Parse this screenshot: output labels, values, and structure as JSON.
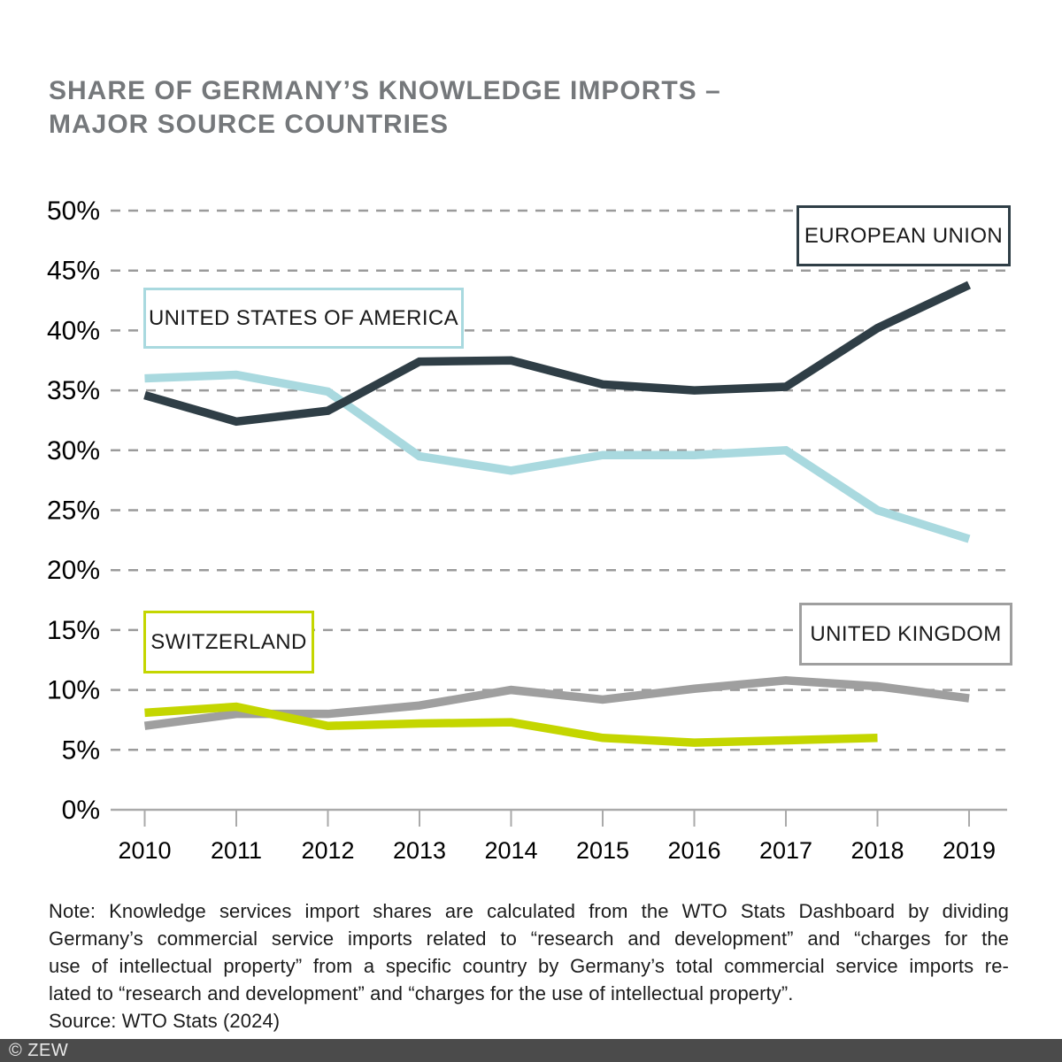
{
  "title": {
    "line1": "SHARE OF GERMANY’S KNOWLEDGE IMPORTS –",
    "line2": "MAJOR SOURCE COUNTRIES"
  },
  "chart_data": {
    "type": "line",
    "x": [
      "2010",
      "2011",
      "2012",
      "2013",
      "2014",
      "2015",
      "2016",
      "2017",
      "2018",
      "2019"
    ],
    "ylim": [
      0,
      50
    ],
    "ytick_step": 5,
    "ytick_suffix": "%",
    "grid": "horizontal-dashed",
    "legend_position": "boxed-labels-inside-plot",
    "series": [
      {
        "name": "UNITED STATES OF AMERICA",
        "color": "#a9d9df",
        "values": [
          36.0,
          36.3,
          34.9,
          29.5,
          28.3,
          29.6,
          29.6,
          30.0,
          25.0,
          22.6
        ]
      },
      {
        "name": "EUROPEAN UNION",
        "color": "#2f3e46",
        "values": [
          34.6,
          32.4,
          33.3,
          37.4,
          37.5,
          35.5,
          35.0,
          35.3,
          40.2,
          43.8
        ]
      },
      {
        "name": "UNITED KINGDOM",
        "color": "#9f9f9f",
        "values": [
          7.0,
          8.0,
          8.0,
          8.7,
          10.0,
          9.2,
          10.1,
          10.8,
          10.3,
          9.3
        ]
      },
      {
        "name": "SWITZERLAND",
        "color": "#c4d600",
        "values": [
          8.1,
          8.6,
          7.0,
          7.2,
          7.3,
          6.0,
          5.6,
          5.8,
          6.0,
          null
        ]
      }
    ]
  },
  "note": {
    "lines": [
      "Note: Knowledge services import shares are calculated from the WTO Stats Dashboard by dividing",
      "Germany’s commercial service imports related to “research and development” and “charges for the",
      "use of intellectual property” from a specific country by Germany’s total commercial service imports re-",
      "lated to “research and development” and “charges for the use of intellectual property”."
    ],
    "source": "Source: WTO Stats (2024)"
  },
  "footer": {
    "text": "© ZEW",
    "bar_color": "#4b4b4b"
  }
}
